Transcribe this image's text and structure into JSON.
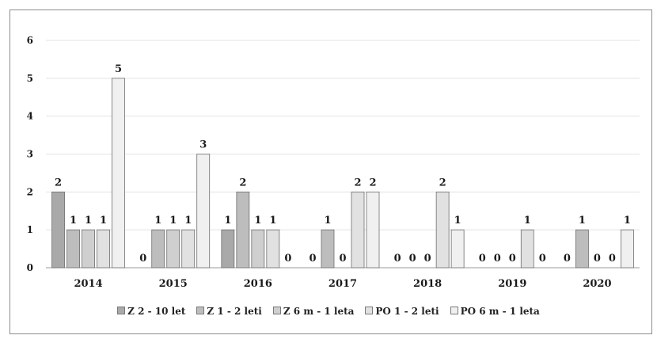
{
  "chart_data": {
    "type": "bar",
    "categories": [
      "2014",
      "2015",
      "2016",
      "2017",
      "2018",
      "2019",
      "2020"
    ],
    "series": [
      {
        "name": "Z 2 - 10 let",
        "values": [
          2,
          0,
          1,
          0,
          0,
          0,
          0
        ],
        "color": "#a9a9a9"
      },
      {
        "name": "Z 1 - 2 leti",
        "values": [
          1,
          1,
          2,
          1,
          0,
          0,
          1
        ],
        "color": "#bdbdbd"
      },
      {
        "name": "Z 6 m - 1 leta",
        "values": [
          1,
          1,
          1,
          0,
          0,
          0,
          0
        ],
        "color": "#cfcfcf"
      },
      {
        "name": "PO 1 - 2 leti",
        "values": [
          1,
          1,
          1,
          2,
          2,
          1,
          0
        ],
        "color": "#e1e1e1"
      },
      {
        "name": "PO 6 m - 1 leta",
        "values": [
          5,
          3,
          0,
          2,
          1,
          0,
          1
        ],
        "color": "#f0f0f0"
      }
    ],
    "ylim": [
      0,
      6
    ],
    "yticks": [
      0,
      1,
      2,
      3,
      4,
      5,
      6
    ],
    "grid": true,
    "legend_position": "bottom",
    "data_labels": true
  }
}
